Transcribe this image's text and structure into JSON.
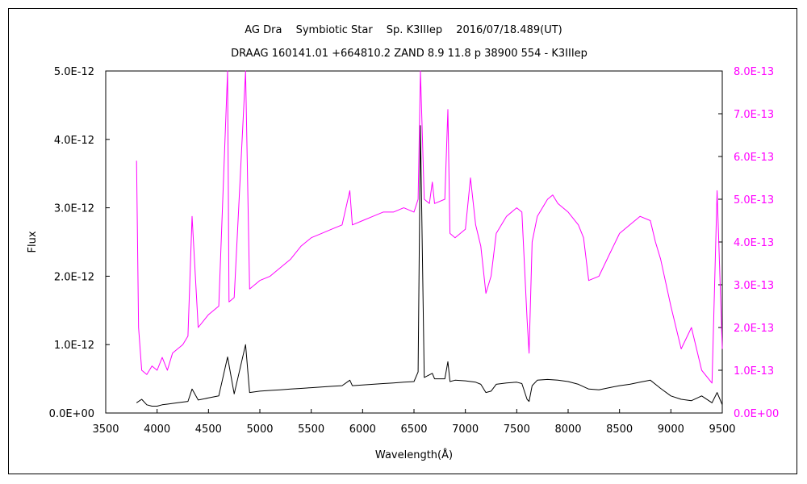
{
  "chart_data": {
    "type": "line",
    "title": "AG Dra　 Symbiotic Star　 Sp. K3IIIep　 2016/07/18.489(UT)",
    "subtitle": "DRAAG 160141.01 +664810.2 ZAND 8.9 11.8 p 38900 554 - K3IIIep",
    "xlabel": "Wavelength(Å)",
    "ylabel": "Flux",
    "xlim": [
      3500,
      9500
    ],
    "ylim_left": [
      0,
      5e-12
    ],
    "ylim_right": [
      0,
      8e-13
    ],
    "x_ticks": [
      "3500",
      "4000",
      "4500",
      "5000",
      "5500",
      "6000",
      "6500",
      "7000",
      "7500",
      "8000",
      "8500",
      "9000",
      "9500"
    ],
    "y_ticks_left": [
      "0.0E+00",
      "1.0E-12",
      "2.0E-12",
      "3.0E-12",
      "4.0E-12",
      "5.0E-12"
    ],
    "y_ticks_right": [
      "0.0E+00",
      "1.0E-13",
      "2.0E-13",
      "3.0E-13",
      "4.0E-13",
      "5.0E-13",
      "6.0E-13",
      "7.0E-13",
      "8.0E-13"
    ],
    "colors": {
      "primary": "#000000",
      "secondary": "#ff00ff"
    },
    "series": [
      {
        "axis": "left",
        "color": "#000000",
        "x": [
          3800,
          3850,
          3900,
          3950,
          4000,
          4050,
          4100,
          4200,
          4300,
          4340,
          4400,
          4500,
          4600,
          4686,
          4750,
          4861,
          4900,
          5000,
          5100,
          5200,
          5300,
          5400,
          5500,
          5600,
          5700,
          5800,
          5876,
          5900,
          6000,
          6100,
          6200,
          6300,
          6400,
          6500,
          6540,
          6563,
          6600,
          6678,
          6700,
          6800,
          6830,
          6850,
          6900,
          7000,
          7100,
          7150,
          7200,
          7250,
          7300,
          7400,
          7500,
          7550,
          7600,
          7620,
          7650,
          7700,
          7800,
          7900,
          8000,
          8100,
          8200,
          8300,
          8400,
          8500,
          8600,
          8700,
          8800,
          8850,
          8900,
          9000,
          9100,
          9200,
          9300,
          9400,
          9450,
          9500
        ],
        "y": [
          1.5e-13,
          2e-13,
          1.2e-13,
          1e-13,
          1e-13,
          1.2e-13,
          1.3e-13,
          1.5e-13,
          1.7e-13,
          3.5e-13,
          1.9e-13,
          2.2e-13,
          2.5e-13,
          8.2e-13,
          2.8e-13,
          1e-12,
          3e-13,
          3.2e-13,
          3.3e-13,
          3.4e-13,
          3.5e-13,
          3.6e-13,
          3.7e-13,
          3.8e-13,
          3.9e-13,
          4e-13,
          4.8e-13,
          4e-13,
          4.1e-13,
          4.2e-13,
          4.3e-13,
          4.4e-13,
          4.5e-13,
          4.6e-13,
          6e-13,
          4.2e-12,
          5.2e-13,
          5.8e-13,
          5e-13,
          5e-13,
          7.5e-13,
          4.6e-13,
          4.8e-13,
          4.7e-13,
          4.5e-13,
          4.2e-13,
          3e-13,
          3.2e-13,
          4.2e-13,
          4.4e-13,
          4.5e-13,
          4.3e-13,
          2e-13,
          1.7e-13,
          4e-13,
          4.8e-13,
          4.9e-13,
          4.8e-13,
          4.6e-13,
          4.2e-13,
          3.5e-13,
          3.4e-13,
          3.7e-13,
          4e-13,
          4.2e-13,
          4.5e-13,
          4.8e-13,
          4.2e-13,
          3.6e-13,
          2.5e-13,
          2e-13,
          1.8e-13,
          2.5e-13,
          1.5e-13,
          3e-13,
          1.2e-13
        ]
      },
      {
        "axis": "right",
        "color": "#ff00ff",
        "x": [
          3800,
          3820,
          3850,
          3900,
          3950,
          4000,
          4050,
          4100,
          4150,
          4200,
          4250,
          4300,
          4340,
          4400,
          4500,
          4600,
          4686,
          4700,
          4750,
          4861,
          4900,
          5000,
          5100,
          5200,
          5300,
          5400,
          5500,
          5600,
          5700,
          5800,
          5876,
          5900,
          6000,
          6100,
          6200,
          6300,
          6400,
          6500,
          6540,
          6563,
          6600,
          6650,
          6678,
          6700,
          6800,
          6830,
          6850,
          6900,
          7000,
          7050,
          7100,
          7150,
          7200,
          7250,
          7300,
          7400,
          7500,
          7550,
          7600,
          7620,
          7650,
          7700,
          7800,
          7850,
          7900,
          8000,
          8100,
          8150,
          8200,
          8300,
          8400,
          8500,
          8600,
          8700,
          8800,
          8850,
          8900,
          9000,
          9100,
          9200,
          9300,
          9400,
          9450,
          9500
        ],
        "y": [
          5.9e-13,
          2e-13,
          1e-13,
          9e-14,
          1.1e-13,
          1e-13,
          1.3e-13,
          1e-13,
          1.4e-13,
          1.5e-13,
          1.6e-13,
          1.8e-13,
          4.6e-13,
          2e-13,
          2.3e-13,
          2.5e-13,
          8e-13,
          2.6e-13,
          2.7e-13,
          8e-13,
          2.9e-13,
          3.1e-13,
          3.2e-13,
          3.4e-13,
          3.6e-13,
          3.9e-13,
          4.1e-13,
          4.2e-13,
          4.3e-13,
          4.4e-13,
          5.2e-13,
          4.4e-13,
          4.5e-13,
          4.6e-13,
          4.7e-13,
          4.7e-13,
          4.8e-13,
          4.7e-13,
          5e-13,
          8e-13,
          5e-13,
          4.9e-13,
          5.4e-13,
          4.9e-13,
          5e-13,
          7.1e-13,
          4.2e-13,
          4.1e-13,
          4.3e-13,
          5.5e-13,
          4.4e-13,
          3.9e-13,
          2.8e-13,
          3.2e-13,
          4.2e-13,
          4.6e-13,
          4.8e-13,
          4.7e-13,
          2.2e-13,
          1.4e-13,
          4e-13,
          4.6e-13,
          5e-13,
          5.1e-13,
          4.9e-13,
          4.7e-13,
          4.4e-13,
          4.1e-13,
          3.1e-13,
          3.2e-13,
          3.7e-13,
          4.2e-13,
          4.4e-13,
          4.6e-13,
          4.5e-13,
          4e-13,
          3.6e-13,
          2.5e-13,
          1.5e-13,
          2e-13,
          1e-13,
          7e-14,
          5.2e-13,
          1.5e-13
        ]
      }
    ]
  }
}
